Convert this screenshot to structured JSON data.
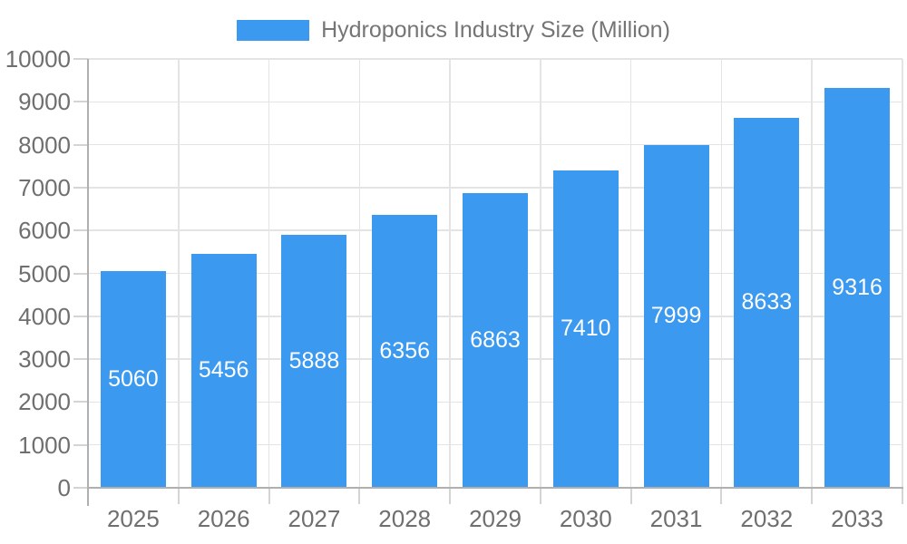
{
  "chart_data": {
    "type": "bar",
    "title": "Hydroponics Industry Size (Million)",
    "legend": {
      "position": "top",
      "label": "Hydroponics Industry Size (Million)"
    },
    "categories": [
      "2025",
      "2026",
      "2027",
      "2028",
      "2029",
      "2030",
      "2031",
      "2032",
      "2033"
    ],
    "values": [
      5060,
      5456,
      5888,
      6356,
      6863,
      7410,
      7999,
      8633,
      9316
    ],
    "xlabel": "",
    "ylabel": "",
    "ylim": [
      0,
      10000
    ],
    "yticks": [
      0,
      1000,
      2000,
      3000,
      4000,
      5000,
      6000,
      7000,
      8000,
      9000,
      10000
    ],
    "grid": true,
    "value_label_position": "inside-center",
    "colors": {
      "bar": "#3b99f0",
      "value_label": "#ffffff",
      "axis_text": "#6f6f6f",
      "legend_text": "#757575",
      "grid": "#e4e4e4",
      "axis_line": "#b0b0b0",
      "tick": "#d4d4d4",
      "background": "#ffffff"
    }
  }
}
